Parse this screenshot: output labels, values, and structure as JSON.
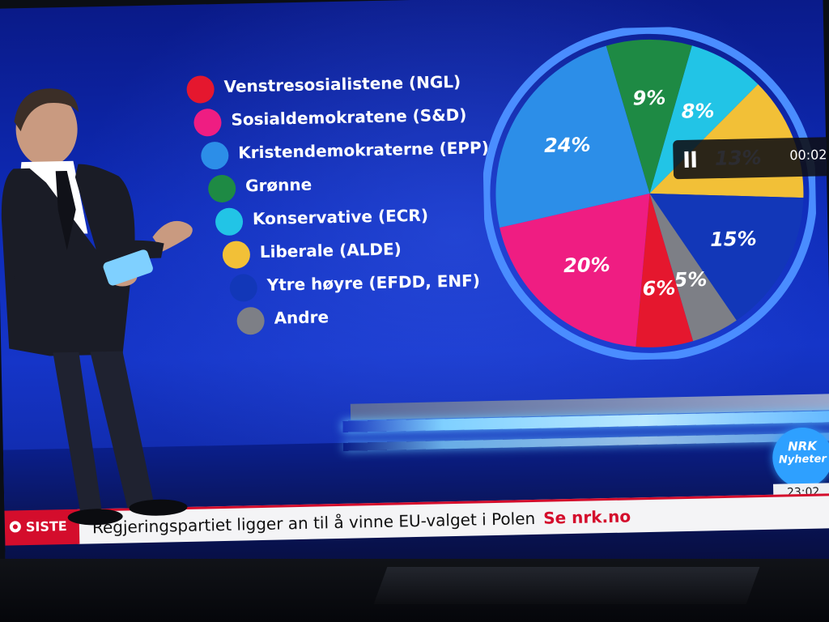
{
  "chart_data": {
    "type": "pie",
    "title": "",
    "slices": [
      {
        "label": "Venstresosialistene (NGL)",
        "value": 6,
        "display": "6%",
        "color": "#e5172e"
      },
      {
        "label": "Sosialdemokratene (S&D)",
        "value": 20,
        "display": "20%",
        "color": "#ef1d82"
      },
      {
        "label": "Kristendemokraterne (EPP)",
        "value": 24,
        "display": "24%",
        "color": "#2c8ee8"
      },
      {
        "label": "Grønne",
        "value": 9,
        "display": "9%",
        "color": "#1e8a44"
      },
      {
        "label": "Konservative (ECR)",
        "value": 8,
        "display": "8%",
        "color": "#22c4e6"
      },
      {
        "label": "Liberale (ALDE)",
        "value": 13,
        "display": "13%",
        "color": "#f2c037"
      },
      {
        "label": "Ytre høyre (EFDD, ENF)",
        "value": 15,
        "display": "15%",
        "color": "#1237b8"
      },
      {
        "label": "Andre",
        "value": 5,
        "display": "5%",
        "color": "#7d7f86"
      }
    ],
    "pie_order": [
      "Konservative (ECR)",
      "Liberale (ALDE)",
      "Ytre høyre (EFDD, ENF)",
      "Andre",
      "Venstresosialistene (NGL)",
      "Sosialdemokratene (S&D)",
      "Kristendemokraterne (EPP)",
      "Grønne"
    ],
    "legend_position": "left"
  },
  "video_player": {
    "time": "00:02",
    "pause_icon": "pause-icon"
  },
  "broadcast": {
    "logo_top": "NRK",
    "logo_bottom": "Nyheter",
    "clock": "23:02",
    "ticker_label": "SISTE",
    "ticker_text": "Regjeringspartiet ligger an til å vinne EU-valget i Polen",
    "ticker_link": "Se nrk.no"
  },
  "colors": {
    "background": "#0e2bb8",
    "ticker_red": "#d40d2c"
  }
}
